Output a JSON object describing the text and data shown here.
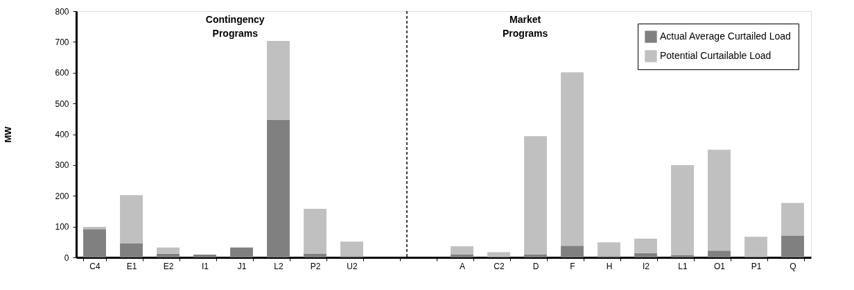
{
  "chart_data": {
    "type": "bar",
    "stacked": true,
    "ylabel": "MW",
    "categories": [
      "C4",
      "E1",
      "E2",
      "I1",
      "J1",
      "L2",
      "P2",
      "U2",
      null,
      null,
      "A",
      "C2",
      "D",
      "F",
      "H",
      "I2",
      "L1",
      "O1",
      "P1",
      "Q"
    ],
    "series": [
      {
        "name": "Actual Average Curtailed Load",
        "color": "#808080",
        "values": [
          92,
          45,
          12,
          9,
          32,
          446,
          11,
          4,
          null,
          null,
          10,
          2,
          10,
          38,
          4,
          14,
          8,
          22,
          2,
          71
        ]
      },
      {
        "name": "Potential Curtailable Load",
        "color": "#c0c0c0",
        "values": [
          7,
          157,
          20,
          0,
          0,
          257,
          147,
          47,
          null,
          null,
          26,
          15,
          384,
          563,
          45,
          47,
          292,
          328,
          65,
          106
        ]
      }
    ],
    "ylim": [
      0,
      800
    ],
    "yticks": [
      0,
      100,
      200,
      300,
      400,
      500,
      600,
      700,
      800
    ],
    "annotations": [
      "Contingency Programs",
      "Market Programs"
    ],
    "ref_lines": [
      {
        "axis": "x",
        "line_style": "dashed",
        "color": "#000000"
      }
    ],
    "legend": "top right",
    "grid": false
  }
}
